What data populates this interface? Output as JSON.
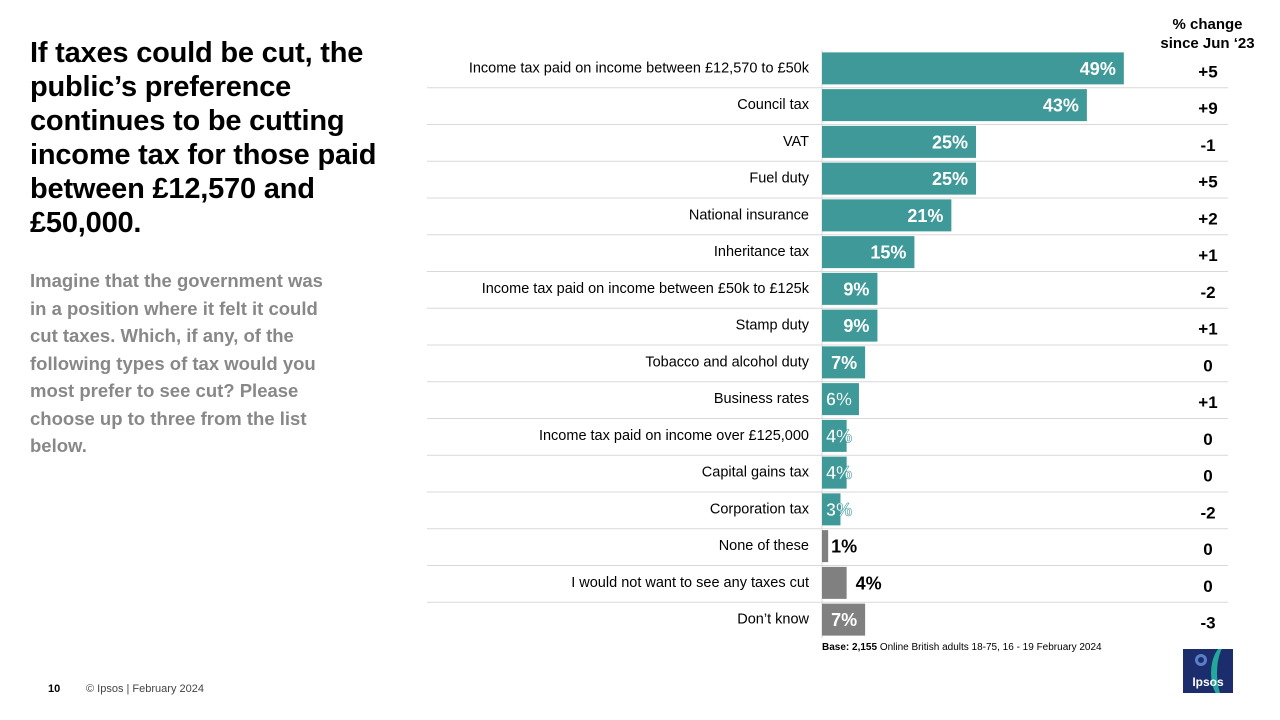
{
  "headline": "If taxes could be cut, the public’s preference continues to be cutting income tax for those paid between £12,570 and £50,000.",
  "question": "Imagine that the government was in a position where it felt it could cut taxes. Which, if any, of the following  types of tax would you most prefer to see cut? Please choose up to three from the list below.",
  "change_header": {
    "line1": "% change",
    "line2": "since Jun ‘23"
  },
  "base": {
    "label": "Base: 2,155",
    "rest": " Online British adults 18-75, 16 - 19 February 2024"
  },
  "footer": {
    "page": "10",
    "copyright": "© Ipsos | February 2024"
  },
  "logo": {
    "text": "Ipsos"
  },
  "colors": {
    "teal": "#3f9999",
    "grey": "#808080"
  },
  "chart_data": {
    "type": "bar",
    "orientation": "horizontal",
    "value_suffix": "%",
    "xlim": [
      0,
      50
    ],
    "categories": [
      "Income tax paid on income between £12,570 to £50k",
      "Council tax",
      "VAT",
      "Fuel duty",
      "National insurance",
      "Inheritance tax",
      "Income tax paid on income between £50k to £125k",
      "Stamp duty",
      "Tobacco and alcohol duty",
      "Business rates",
      "Income tax paid on income over £125,000",
      "Capital gains tax",
      "Corporation tax",
      "None of these",
      "I would not want to see any taxes cut",
      "Don’t know"
    ],
    "values": [
      49,
      43,
      25,
      25,
      21,
      15,
      9,
      9,
      7,
      6,
      4,
      4,
      3,
      1,
      4,
      7
    ],
    "bar_groups": [
      "teal",
      "teal",
      "teal",
      "teal",
      "teal",
      "teal",
      "teal",
      "teal",
      "teal",
      "teal",
      "teal",
      "teal",
      "teal",
      "grey",
      "grey",
      "grey"
    ],
    "change_since_jun_23": [
      "+5",
      "+9",
      "-1",
      "+5",
      "+2",
      "+1",
      "-2",
      "+1",
      "0",
      "+1",
      "0",
      "0",
      "-2",
      "0",
      "0",
      "-3"
    ]
  }
}
